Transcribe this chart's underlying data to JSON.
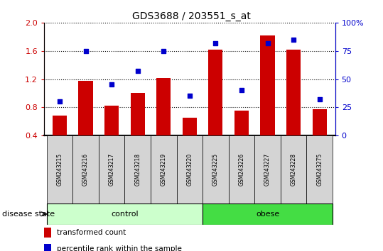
{
  "title": "GDS3688 / 203551_s_at",
  "samples": [
    "GSM243215",
    "GSM243216",
    "GSM243217",
    "GSM243218",
    "GSM243219",
    "GSM243220",
    "GSM243225",
    "GSM243226",
    "GSM243227",
    "GSM243228",
    "GSM243275"
  ],
  "transformed_count": [
    0.68,
    1.18,
    0.82,
    1.0,
    1.22,
    0.65,
    1.62,
    0.75,
    1.82,
    1.62,
    0.77
  ],
  "percentile_rank": [
    30,
    75,
    45,
    57,
    75,
    35,
    82,
    40,
    82,
    85,
    32
  ],
  "ylim_left": [
    0.4,
    2.0
  ],
  "ylim_right": [
    0,
    100
  ],
  "yticks_left": [
    0.4,
    0.8,
    1.2,
    1.6,
    2.0
  ],
  "yticks_right": [
    0,
    25,
    50,
    75,
    100
  ],
  "ytick_labels_right": [
    "0",
    "25",
    "50",
    "75",
    "100%"
  ],
  "bar_color": "#cc0000",
  "dot_color": "#0000cc",
  "background_color": "#ffffff",
  "control_indices": [
    0,
    1,
    2,
    3,
    4,
    5
  ],
  "obese_indices": [
    6,
    7,
    8,
    9,
    10
  ],
  "control_label": "control",
  "obese_label": "obese",
  "control_color": "#ccffcc",
  "obese_color": "#44dd44",
  "label_transformed": "transformed count",
  "label_percentile": "percentile rank within the sample",
  "disease_state_label": "disease state",
  "cell_color": "#d4d4d4",
  "bar_width": 0.55
}
